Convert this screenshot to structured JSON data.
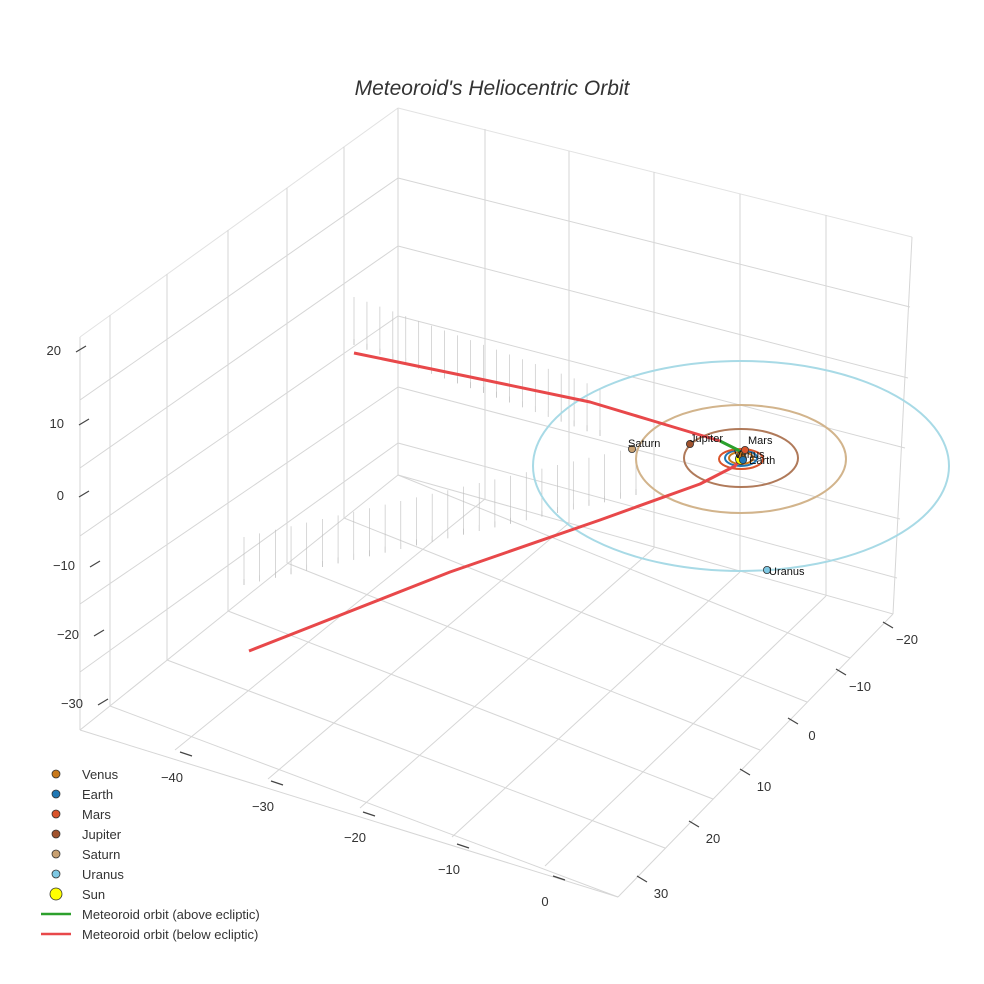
{
  "chart_data": {
    "type": "scatter3d",
    "title": "Meteoroid's Heliocentric Orbit",
    "axes": {
      "x": {
        "ticks": [
          -40,
          -30,
          -20,
          -10,
          0
        ]
      },
      "y": {
        "ticks": [
          -20,
          -10,
          0,
          10,
          20,
          30
        ]
      },
      "z": {
        "ticks": [
          -30,
          -20,
          -10,
          0,
          10,
          20
        ]
      }
    },
    "planets": [
      {
        "name": "Venus",
        "color": "#c8781a",
        "orbit_color": "#c8781a",
        "label_offset": [
          -7,
          3
        ]
      },
      {
        "name": "Earth",
        "color": "#1f77b4",
        "orbit_color": "#1f77b4",
        "label_offset": [
          6,
          4
        ]
      },
      {
        "name": "Mars",
        "color": "#d9542b",
        "orbit_color": "#d9542b",
        "label_offset": [
          3,
          -6
        ]
      },
      {
        "name": "Jupiter",
        "color": "#a0522d",
        "orbit_color": "#b07a5a",
        "label_offset": [
          0,
          -2
        ]
      },
      {
        "name": "Saturn",
        "color": "#c8a070",
        "orbit_color": "#d2b48c",
        "label_offset": [
          -4,
          -2
        ]
      },
      {
        "name": "Uranus",
        "color": "#7ec8e3",
        "orbit_color": "#a8dae6",
        "label_offset": [
          2,
          5
        ]
      }
    ],
    "sun": {
      "name": "Sun",
      "color": "#ffff00"
    },
    "meteoroid": {
      "above_ecliptic": {
        "name": "Meteoroid orbit (above ecliptic)",
        "color": "#2ca02c"
      },
      "below_ecliptic": {
        "name": "Meteoroid orbit (below ecliptic)",
        "color": "#e8484a"
      }
    },
    "legend": [
      {
        "label": "Venus",
        "type": "marker",
        "color": "#c8781a"
      },
      {
        "label": "Earth",
        "type": "marker",
        "color": "#1f77b4"
      },
      {
        "label": "Mars",
        "type": "marker",
        "color": "#d9542b"
      },
      {
        "label": "Jupiter",
        "type": "marker",
        "color": "#a0522d"
      },
      {
        "label": "Saturn",
        "type": "marker",
        "color": "#c8a070"
      },
      {
        "label": "Uranus",
        "type": "marker",
        "color": "#7ec8e3"
      },
      {
        "label": "Sun",
        "type": "sun",
        "color": "#ffff00"
      },
      {
        "label": "Meteoroid orbit (above ecliptic)",
        "type": "line",
        "color": "#2ca02c"
      },
      {
        "label": "Meteoroid orbit (below ecliptic)",
        "type": "line",
        "color": "#e8484a"
      }
    ],
    "legend_position": "bottom-left",
    "grid": true
  }
}
